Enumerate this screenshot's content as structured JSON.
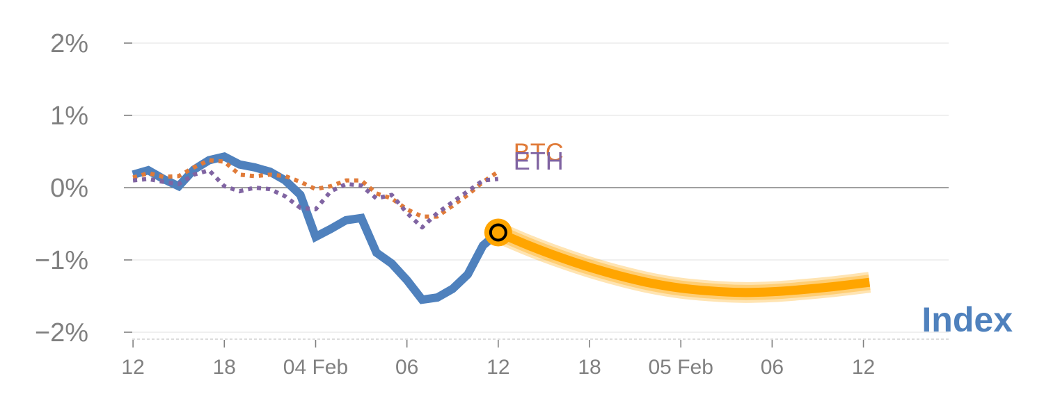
{
  "chart_data": {
    "type": "line",
    "title": "",
    "xlabel": "",
    "ylabel": "",
    "ylim": [
      -2,
      2
    ],
    "xlim": [
      -0.3,
      26.8
    ],
    "grid": true,
    "yticks": [
      {
        "value": 2,
        "label": "2%"
      },
      {
        "value": 1,
        "label": "1%"
      },
      {
        "value": 0,
        "label": "0%"
      },
      {
        "value": -1,
        "label": "−1%"
      },
      {
        "value": -2,
        "label": "−2%"
      }
    ],
    "xticks": [
      {
        "value": 0,
        "label": "12"
      },
      {
        "value": 3,
        "label": "18"
      },
      {
        "value": 6,
        "label": "04 Feb"
      },
      {
        "value": 9,
        "label": "06"
      },
      {
        "value": 12,
        "label": "12"
      },
      {
        "value": 15,
        "label": "18"
      },
      {
        "value": 18,
        "label": "05 Feb"
      },
      {
        "value": 21,
        "label": "06"
      },
      {
        "value": 24,
        "label": "12"
      }
    ],
    "series": [
      {
        "name": "Index",
        "color": "#4f81bd",
        "style": "solid",
        "x": [
          0,
          0.5,
          1,
          1.5,
          2,
          2.5,
          3,
          3.5,
          4,
          4.5,
          5,
          5.5,
          6,
          6.5,
          7,
          7.5,
          8,
          8.5,
          9,
          9.5,
          10,
          10.5,
          11,
          11.5,
          12
        ],
        "values": [
          0.18,
          0.24,
          0.12,
          0.02,
          0.25,
          0.38,
          0.43,
          0.32,
          0.28,
          0.22,
          0.1,
          -0.1,
          -0.68,
          -0.57,
          -0.45,
          -0.42,
          -0.9,
          -1.05,
          -1.28,
          -1.55,
          -1.52,
          -1.4,
          -1.2,
          -0.8,
          -0.62
        ]
      },
      {
        "name": "BTC",
        "color": "#e07b39",
        "style": "dotted",
        "x": [
          0,
          0.5,
          1,
          1.5,
          2,
          2.5,
          3,
          3.5,
          4,
          4.5,
          5,
          5.5,
          6,
          6.5,
          7,
          7.5,
          8,
          8.5,
          9,
          9.5,
          10,
          10.5,
          11,
          11.5,
          12
        ],
        "values": [
          0.14,
          0.2,
          0.15,
          0.16,
          0.28,
          0.38,
          0.36,
          0.18,
          0.16,
          0.18,
          0.16,
          0.08,
          -0.02,
          0.02,
          0.1,
          0.1,
          -0.08,
          -0.15,
          -0.3,
          -0.4,
          -0.4,
          -0.25,
          -0.1,
          0.08,
          0.22
        ]
      },
      {
        "name": "ETH",
        "color": "#8064a2",
        "style": "dotted",
        "x": [
          0,
          0.5,
          1,
          1.5,
          2,
          2.5,
          3,
          3.5,
          4,
          4.5,
          5,
          5.5,
          6,
          6.5,
          7,
          7.5,
          8,
          8.5,
          9,
          9.5,
          10,
          10.5,
          11,
          11.5,
          12
        ],
        "values": [
          0.1,
          0.12,
          0.08,
          0.05,
          0.18,
          0.24,
          0.02,
          -0.05,
          0.0,
          -0.02,
          -0.12,
          -0.28,
          -0.3,
          -0.05,
          0.05,
          0.03,
          -0.15,
          -0.1,
          -0.35,
          -0.55,
          -0.35,
          -0.2,
          -0.05,
          0.1,
          0.12
        ]
      },
      {
        "name": "Forecast",
        "color": "#ffa500",
        "style": "band",
        "x": [
          12,
          13,
          14,
          15,
          16,
          17,
          18,
          19,
          20,
          21,
          22,
          23,
          24.2
        ],
        "values": [
          -0.62,
          -0.8,
          -0.96,
          -1.1,
          -1.22,
          -1.32,
          -1.39,
          -1.43,
          -1.45,
          -1.44,
          -1.41,
          -1.37,
          -1.31
        ]
      }
    ],
    "marker": {
      "x": 12,
      "value": -0.62
    },
    "labels": {
      "btc": {
        "text": "BTC",
        "color": "#e07b39",
        "x": 12.5,
        "value": 0.37
      },
      "eth": {
        "text": "ETH",
        "color": "#8064a2",
        "x": 12.5,
        "value": 0.25
      },
      "index": {
        "text": "Index",
        "color": "#4f81bd"
      }
    }
  }
}
